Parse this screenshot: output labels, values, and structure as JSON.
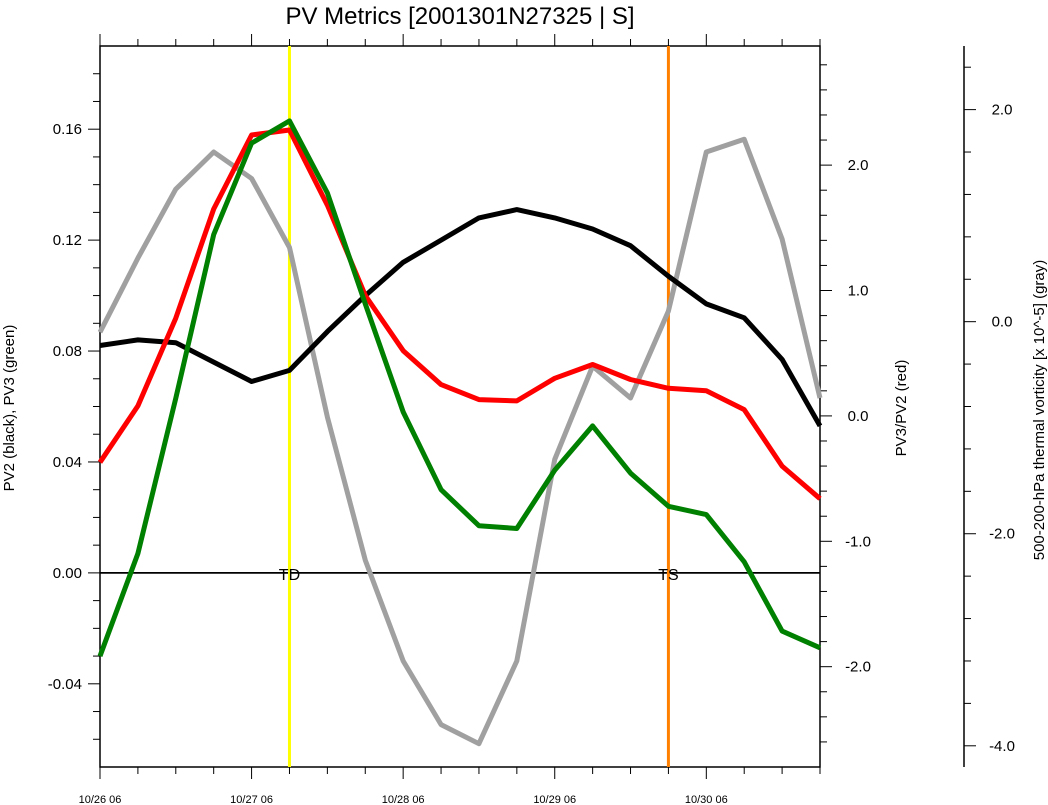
{
  "chart_data": {
    "type": "line",
    "title": "PV Metrics [2001301N27325 | S]",
    "x_tick_labels": [
      "10/26 06",
      "10/27 06",
      "10/28 06",
      "10/29 06",
      "10/30 06"
    ],
    "x_tick_days": [
      0,
      1,
      2,
      3,
      4
    ],
    "x_points": [
      0,
      0.25,
      0.5,
      0.75,
      1.0,
      1.25,
      1.5,
      1.75,
      2.0,
      2.25,
      2.5,
      2.75,
      3.0,
      3.25,
      3.5,
      3.75,
      4.0,
      4.25,
      4.5,
      4.75
    ],
    "xlim": [
      0,
      4.75
    ],
    "left_axis": {
      "label": "PV2 (black), PV3 (green)",
      "ylim": [
        -0.07,
        0.19
      ],
      "ticks": [
        -0.04,
        0.0,
        0.04,
        0.08,
        0.12,
        0.16
      ],
      "tick_labels": [
        "-0.04",
        "0.00",
        "0.04",
        "0.08",
        "0.12",
        "0.16"
      ]
    },
    "right_axis": {
      "label": "PV3/PV2 (red)",
      "ylim": [
        -2.8,
        2.95
      ],
      "ticks": [
        -2.0,
        -1.0,
        0.0,
        1.0,
        2.0
      ],
      "tick_labels": [
        "-2.0",
        "-1.0",
        "0.0",
        "1.0",
        "2.0"
      ]
    },
    "far_axis": {
      "label": "500-200-hPa thermal vorticity [x 10^-5] (gray)",
      "ylim": [
        -4.2,
        2.6
      ],
      "ticks": [
        -4.0,
        -2.0,
        0.0,
        2.0
      ],
      "tick_labels": [
        "-4.0",
        "-2.0",
        "0.0",
        "2.0"
      ]
    },
    "series": [
      {
        "name": "PV2",
        "axis": "left",
        "color": "#000000",
        "values": [
          0.082,
          0.084,
          0.083,
          0.076,
          0.069,
          0.073,
          0.087,
          0.1,
          0.112,
          0.12,
          0.128,
          0.131,
          0.128,
          0.124,
          0.118,
          0.107,
          0.097,
          0.092,
          0.077,
          0.053
        ]
      },
      {
        "name": "PV3",
        "axis": "left",
        "color": "#008000",
        "values": [
          -0.03,
          0.007,
          0.063,
          0.122,
          0.155,
          0.163,
          0.137,
          0.097,
          0.058,
          0.03,
          0.017,
          0.016,
          0.037,
          0.053,
          0.036,
          0.024,
          0.021,
          0.004,
          -0.021,
          -0.027
        ]
      },
      {
        "name": "PV3/PV2",
        "axis": "right",
        "color": "#ff0000",
        "values": [
          -0.37,
          0.08,
          0.78,
          1.65,
          2.24,
          2.28,
          1.68,
          0.96,
          0.52,
          0.25,
          0.13,
          0.12,
          0.3,
          0.41,
          0.29,
          0.22,
          0.2,
          0.05,
          -0.4,
          -0.66
        ]
      },
      {
        "name": "thermal vorticity",
        "axis": "far",
        "color": "#a0a0a0",
        "values": [
          -0.1,
          0.6,
          1.25,
          1.6,
          1.35,
          0.7,
          -0.9,
          -2.25,
          -3.2,
          -3.8,
          -3.98,
          -3.2,
          -1.3,
          -0.42,
          -0.72,
          0.1,
          1.6,
          1.72,
          0.78,
          -0.72
        ]
      }
    ],
    "zero_line": {
      "axis": "left",
      "value": 0.0
    },
    "events": [
      {
        "label": "TD",
        "x": 1.25,
        "color": "#ffff00"
      },
      {
        "label": "TS",
        "x": 3.75,
        "color": "#ff8000"
      }
    ],
    "grid": false,
    "legend": "none"
  }
}
